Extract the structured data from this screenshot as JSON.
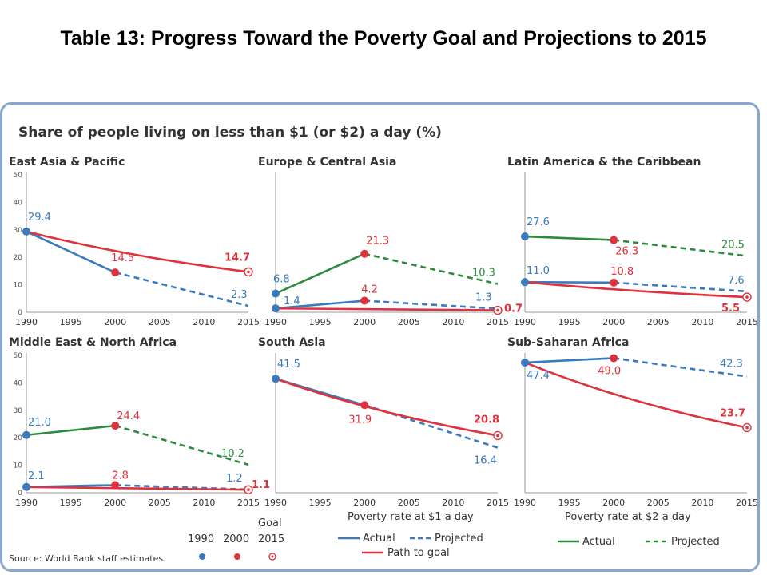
{
  "page_title": "Table 13: Progress Toward the Poverty Goal and Projections to 2015",
  "figure_title": "Share of people living on less than $1 (or $2) a day (%)",
  "source": "Source: World Bank staff estimates.",
  "colors": {
    "actual_1": "#3a7bbf",
    "goal": "#e0323c",
    "actual_2": "#2e8b3e",
    "frame": "#8aa7cf",
    "axis": "#9a9a9a"
  },
  "legend": {
    "marker_years": [
      "1990",
      "2000",
      "2015"
    ],
    "marker_goal_label": "Goal",
    "group1_title": "Poverty rate at $1 a day",
    "group1_actual": "Actual",
    "group1_projected": "Projected",
    "group1_path": "Path to goal",
    "group2_title": "Poverty rate at $2 a day",
    "group2_actual": "Actual",
    "group2_projected": "Projected"
  },
  "chart_data": [
    {
      "type": "line",
      "title": "East Asia & Pacific",
      "x_ticks": [
        "1990",
        "1995",
        "2000",
        "2005",
        "2010",
        "2015"
      ],
      "ylim": [
        0,
        50
      ],
      "y_ticks": [
        "0",
        "10",
        "20",
        "30",
        "40",
        "50"
      ],
      "series": [
        {
          "kind": "actual1",
          "x": [
            1990,
            2000
          ],
          "y": [
            29.4,
            14.5
          ]
        },
        {
          "kind": "proj1",
          "x": [
            2000,
            2015
          ],
          "y": [
            14.5,
            2.3
          ]
        },
        {
          "kind": "goal",
          "x": [
            1990,
            2015
          ],
          "y": [
            29.4,
            14.7
          ]
        }
      ],
      "markers": [
        {
          "x": 1990,
          "y": 29.4,
          "type": "m1990"
        },
        {
          "x": 2000,
          "y": 14.5,
          "type": "m2000"
        },
        {
          "x": 2015,
          "y": 14.7,
          "type": "goal"
        }
      ],
      "labels": [
        {
          "text": "29.4",
          "color": "blue",
          "x": 1990,
          "y": 29.4,
          "dx": 2,
          "dy": -14
        },
        {
          "text": "14.5",
          "color": "red",
          "x": 2000,
          "y": 14.5,
          "dx": -5,
          "dy": -14
        },
        {
          "text": "14.7",
          "color": "red",
          "x": 2015,
          "y": 14.7,
          "dx": -30,
          "dy": -14,
          "bold": true
        },
        {
          "text": "2.3",
          "color": "blue",
          "x": 2015,
          "y": 2.3,
          "dx": -22,
          "dy": -10
        }
      ]
    },
    {
      "type": "line",
      "title": "Europe & Central Asia",
      "x_ticks": [
        "1990",
        "1995",
        "2000",
        "2005",
        "2010",
        "2015"
      ],
      "ylim": [
        0,
        50
      ],
      "y_ticks": [],
      "series": [
        {
          "kind": "actual2",
          "x": [
            1990,
            2000
          ],
          "y": [
            6.8,
            21.3
          ]
        },
        {
          "kind": "proj2",
          "x": [
            2000,
            2015
          ],
          "y": [
            21.3,
            10.3
          ]
        },
        {
          "kind": "actual1",
          "x": [
            1990,
            2000
          ],
          "y": [
            1.4,
            4.2
          ]
        },
        {
          "kind": "proj1",
          "x": [
            2000,
            2015
          ],
          "y": [
            4.2,
            1.3
          ]
        },
        {
          "kind": "goal",
          "x": [
            1990,
            2015
          ],
          "y": [
            1.4,
            0.7
          ]
        }
      ],
      "markers": [
        {
          "x": 1990,
          "y": 6.8,
          "type": "m1990"
        },
        {
          "x": 2000,
          "y": 21.3,
          "type": "m2000"
        },
        {
          "x": 1990,
          "y": 1.4,
          "type": "m1990"
        },
        {
          "x": 2000,
          "y": 4.2,
          "type": "m2000"
        },
        {
          "x": 2015,
          "y": 0.7,
          "type": "goal"
        }
      ],
      "labels": [
        {
          "text": "6.8",
          "color": "blue",
          "x": 1990,
          "y": 6.8,
          "dx": -3,
          "dy": -14
        },
        {
          "text": "21.3",
          "color": "red",
          "x": 2000,
          "y": 21.3,
          "dx": 2,
          "dy": -12
        },
        {
          "text": "10.3",
          "color": "green",
          "x": 2015,
          "y": 10.3,
          "dx": -32,
          "dy": -10
        },
        {
          "text": "1.4",
          "color": "blue",
          "x": 1990,
          "y": 1.4,
          "dx": 10,
          "dy": -5
        },
        {
          "text": "4.2",
          "color": "red",
          "x": 2000,
          "y": 4.2,
          "dx": -4,
          "dy": -10
        },
        {
          "text": "1.3",
          "color": "blue",
          "x": 2015,
          "y": 1.3,
          "dx": -28,
          "dy": -10
        },
        {
          "text": "0.7",
          "color": "red",
          "x": 2015,
          "y": 0.7,
          "dx": 8,
          "dy": 2,
          "bold": true
        }
      ]
    },
    {
      "type": "line",
      "title": "Latin America & the Caribbean",
      "x_ticks": [
        "1990",
        "1995",
        "2000",
        "2005",
        "2010",
        "2015"
      ],
      "ylim": [
        0,
        50
      ],
      "y_ticks": [],
      "series": [
        {
          "kind": "actual2",
          "x": [
            1990,
            2000
          ],
          "y": [
            27.6,
            26.3
          ]
        },
        {
          "kind": "proj2",
          "x": [
            2000,
            2015
          ],
          "y": [
            26.3,
            20.5
          ]
        },
        {
          "kind": "actual1",
          "x": [
            1990,
            2000
          ],
          "y": [
            11.0,
            10.8
          ]
        },
        {
          "kind": "proj1",
          "x": [
            2000,
            2015
          ],
          "y": [
            10.8,
            7.6
          ]
        },
        {
          "kind": "goal",
          "x": [
            1990,
            2015
          ],
          "y": [
            11.0,
            5.5
          ]
        }
      ],
      "markers": [
        {
          "x": 1990,
          "y": 27.6,
          "type": "m1990"
        },
        {
          "x": 2000,
          "y": 26.3,
          "type": "m2000"
        },
        {
          "x": 1990,
          "y": 11.0,
          "type": "m1990"
        },
        {
          "x": 2000,
          "y": 10.8,
          "type": "m2000"
        },
        {
          "x": 2015,
          "y": 5.5,
          "type": "goal"
        }
      ],
      "labels": [
        {
          "text": "27.6",
          "color": "blue",
          "x": 1990,
          "y": 27.6,
          "dx": 2,
          "dy": -14
        },
        {
          "text": "26.3",
          "color": "red",
          "x": 2000,
          "y": 26.3,
          "dx": 2,
          "dy": 18
        },
        {
          "text": "20.5",
          "color": "green",
          "x": 2015,
          "y": 20.5,
          "dx": -32,
          "dy": -10
        },
        {
          "text": "11.0",
          "color": "blue",
          "x": 1990,
          "y": 11.0,
          "dx": 2,
          "dy": -10
        },
        {
          "text": "10.8",
          "color": "red",
          "x": 2000,
          "y": 10.8,
          "dx": -4,
          "dy": -10
        },
        {
          "text": "7.6",
          "color": "blue",
          "x": 2015,
          "y": 7.6,
          "dx": -24,
          "dy": -10
        },
        {
          "text": "5.5",
          "color": "red",
          "x": 2015,
          "y": 5.5,
          "dx": -32,
          "dy": 18,
          "bold": true
        }
      ]
    },
    {
      "type": "line",
      "title": "Middle East & North Africa",
      "x_ticks": [
        "1990",
        "1995",
        "2000",
        "2005",
        "2010",
        "2015"
      ],
      "ylim": [
        0,
        50
      ],
      "y_ticks": [
        "0",
        "10",
        "20",
        "30",
        "40",
        "50"
      ],
      "series": [
        {
          "kind": "actual2",
          "x": [
            1990,
            2000
          ],
          "y": [
            21.0,
            24.4
          ]
        },
        {
          "kind": "proj2",
          "x": [
            2000,
            2015
          ],
          "y": [
            24.4,
            10.2
          ]
        },
        {
          "kind": "actual1",
          "x": [
            1990,
            2000
          ],
          "y": [
            2.1,
            2.8
          ]
        },
        {
          "kind": "proj1",
          "x": [
            2000,
            2015
          ],
          "y": [
            2.8,
            1.2
          ]
        },
        {
          "kind": "goal",
          "x": [
            1990,
            2015
          ],
          "y": [
            2.1,
            1.1
          ]
        }
      ],
      "markers": [
        {
          "x": 1990,
          "y": 21.0,
          "type": "m1990"
        },
        {
          "x": 2000,
          "y": 24.4,
          "type": "m2000"
        },
        {
          "x": 1990,
          "y": 2.1,
          "type": "m1990"
        },
        {
          "x": 2000,
          "y": 2.8,
          "type": "m2000"
        },
        {
          "x": 2015,
          "y": 1.1,
          "type": "goal"
        }
      ],
      "labels": [
        {
          "text": "21.0",
          "color": "blue",
          "x": 1990,
          "y": 21.0,
          "dx": 2,
          "dy": -12
        },
        {
          "text": "24.4",
          "color": "red",
          "x": 2000,
          "y": 24.4,
          "dx": 2,
          "dy": -8
        },
        {
          "text": "10.2",
          "color": "green",
          "x": 2015,
          "y": 10.2,
          "dx": -34,
          "dy": -10
        },
        {
          "text": "2.1",
          "color": "blue",
          "x": 1990,
          "y": 2.1,
          "dx": 2,
          "dy": -10
        },
        {
          "text": "2.8",
          "color": "red",
          "x": 2000,
          "y": 2.8,
          "dx": -4,
          "dy": -8
        },
        {
          "text": "1.2",
          "color": "blue",
          "x": 2015,
          "y": 1.2,
          "dx": -28,
          "dy": -10
        },
        {
          "text": "1.1",
          "color": "red",
          "x": 2015,
          "y": 1.1,
          "dx": 4,
          "dy": -2,
          "bold": true
        }
      ]
    },
    {
      "type": "line",
      "title": "South Asia",
      "x_ticks": [
        "1990",
        "1995",
        "2000",
        "2005",
        "2010",
        "2015"
      ],
      "ylim": [
        0,
        50
      ],
      "y_ticks": [],
      "series": [
        {
          "kind": "actual1",
          "x": [
            1990,
            2000
          ],
          "y": [
            41.5,
            31.9
          ]
        },
        {
          "kind": "proj1",
          "x": [
            2000,
            2015
          ],
          "y": [
            31.9,
            16.4
          ]
        },
        {
          "kind": "goal",
          "x": [
            1990,
            2015
          ],
          "y": [
            41.5,
            20.8
          ]
        }
      ],
      "markers": [
        {
          "x": 1990,
          "y": 41.5,
          "type": "m1990"
        },
        {
          "x": 2000,
          "y": 31.9,
          "type": "m2000"
        },
        {
          "x": 2015,
          "y": 20.8,
          "type": "goal"
        }
      ],
      "labels": [
        {
          "text": "41.5",
          "color": "blue",
          "x": 1990,
          "y": 41.5,
          "dx": 2,
          "dy": -14
        },
        {
          "text": "31.9",
          "color": "red",
          "x": 2000,
          "y": 31.9,
          "dx": -20,
          "dy": 22
        },
        {
          "text": "20.8",
          "color": "red",
          "x": 2015,
          "y": 20.8,
          "dx": -30,
          "dy": -16,
          "bold": true
        },
        {
          "text": "16.4",
          "color": "blue",
          "x": 2015,
          "y": 16.4,
          "dx": -30,
          "dy": 20
        }
      ]
    },
    {
      "type": "line",
      "title": "Sub-Saharan Africa",
      "x_ticks": [
        "1990",
        "1995",
        "2000",
        "2005",
        "2010",
        "2015"
      ],
      "ylim": [
        0,
        50
      ],
      "y_ticks": [],
      "series": [
        {
          "kind": "actual1",
          "x": [
            1990,
            2000
          ],
          "y": [
            47.4,
            49.0
          ]
        },
        {
          "kind": "proj1",
          "x": [
            2000,
            2015
          ],
          "y": [
            49.0,
            42.3
          ]
        },
        {
          "kind": "goal",
          "x": [
            1990,
            2015
          ],
          "y": [
            47.4,
            23.7
          ]
        }
      ],
      "markers": [
        {
          "x": 1990,
          "y": 47.4,
          "type": "m1990"
        },
        {
          "x": 2000,
          "y": 49.0,
          "type": "m2000"
        },
        {
          "x": 2015,
          "y": 23.7,
          "type": "goal"
        }
      ],
      "labels": [
        {
          "text": "47.4",
          "color": "blue",
          "x": 1990,
          "y": 47.4,
          "dx": 2,
          "dy": 20
        },
        {
          "text": "49.0",
          "color": "red",
          "x": 2000,
          "y": 49.0,
          "dx": -20,
          "dy": 20
        },
        {
          "text": "42.3",
          "color": "blue",
          "x": 2015,
          "y": 42.3,
          "dx": -34,
          "dy": -12
        },
        {
          "text": "23.7",
          "color": "red",
          "x": 2015,
          "y": 23.7,
          "dx": -34,
          "dy": -14,
          "bold": true
        }
      ]
    }
  ]
}
